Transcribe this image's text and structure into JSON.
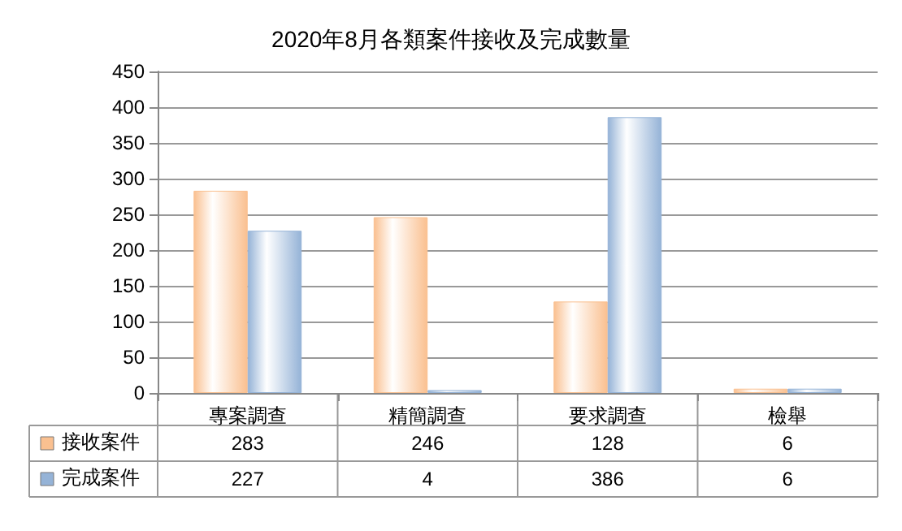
{
  "chart_data": {
    "type": "bar",
    "title": "2020年8月各類案件接收及完成數量",
    "categories": [
      "專案調查",
      "精簡調查",
      "要求調查",
      "檢舉"
    ],
    "series": [
      {
        "name": "接收案件",
        "color": "#fac090",
        "values": [
          283,
          246,
          128,
          6
        ]
      },
      {
        "name": "完成案件",
        "color": "#95b3d7",
        "values": [
          227,
          4,
          386,
          6
        ]
      }
    ],
    "ylim": [
      0,
      450
    ],
    "yticks": [
      0,
      50,
      100,
      150,
      200,
      250,
      300,
      350,
      400,
      450
    ],
    "grid": "y",
    "legend": "bottom",
    "data_labels": true
  }
}
